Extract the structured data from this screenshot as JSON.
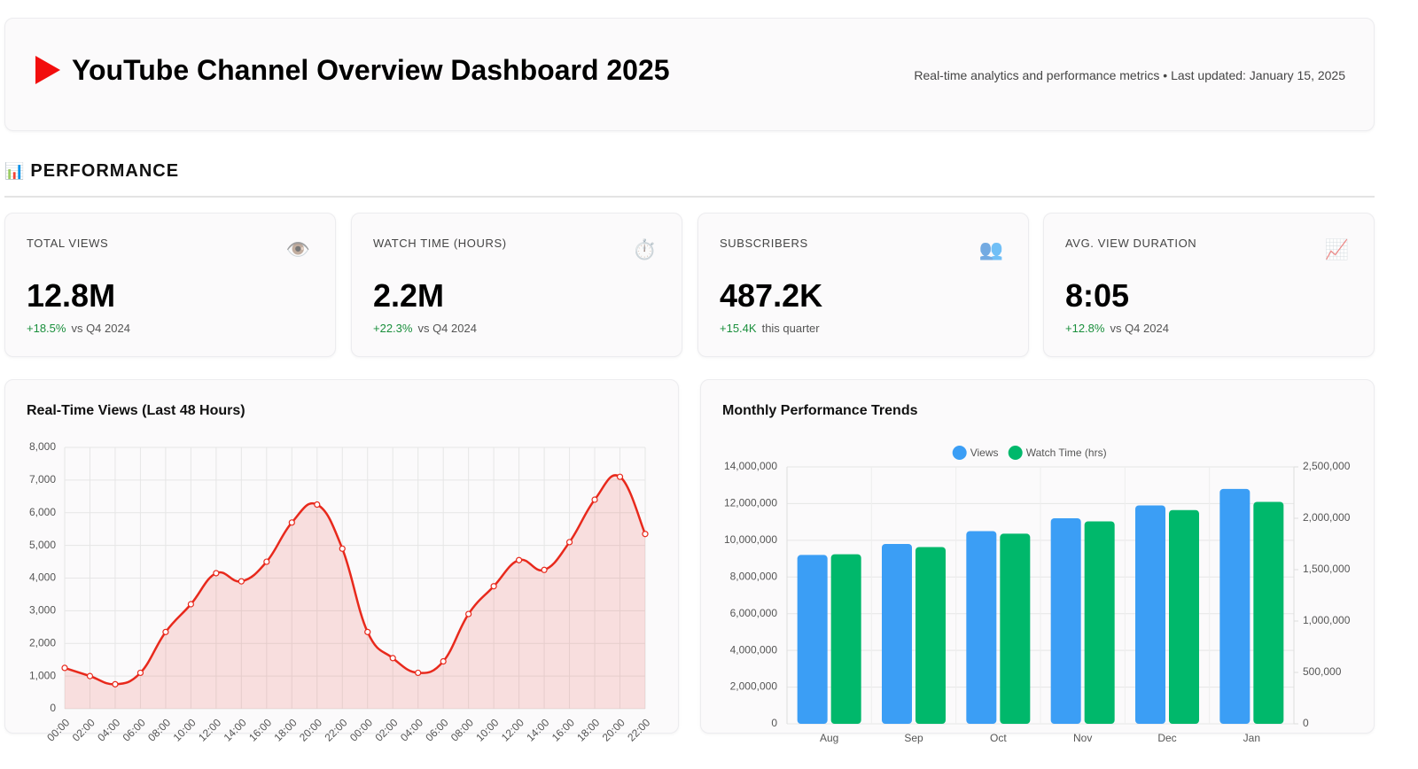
{
  "header": {
    "title": "YouTube Channel Overview Dashboard 2025",
    "subtitle": "Real-time analytics and performance metrics • Last updated: January 15, 2025"
  },
  "section": {
    "title": "PERFORMANCE"
  },
  "kpis": [
    {
      "label": "TOTAL VIEWS",
      "value": "12.8M",
      "change": "+18.5%",
      "note": "vs Q4 2024"
    },
    {
      "label": "WATCH TIME (HOURS)",
      "value": "2.2M",
      "change": "+22.3%",
      "note": "vs Q4 2024"
    },
    {
      "label": "SUBSCRIBERS",
      "value": "487.2K",
      "change": "+15.4K",
      "note": "this quarter"
    },
    {
      "label": "AVG. VIEW DURATION",
      "value": "8:05",
      "change": "+12.8%",
      "note": "vs Q4 2024"
    }
  ],
  "chart_data": [
    {
      "type": "line",
      "title": "Real-Time Views (Last 48 Hours)",
      "categories": [
        "00:00",
        "02:00",
        "04:00",
        "06:00",
        "08:00",
        "10:00",
        "12:00",
        "14:00",
        "16:00",
        "18:00",
        "20:00",
        "22:00",
        "00:00",
        "02:00",
        "04:00",
        "06:00",
        "08:00",
        "10:00",
        "12:00",
        "14:00",
        "16:00",
        "18:00",
        "20:00",
        "22:00"
      ],
      "values": [
        1250,
        1000,
        750,
        1100,
        2350,
        3200,
        4150,
        3900,
        4500,
        5700,
        6250,
        4900,
        2350,
        1550,
        1100,
        1450,
        2900,
        3750,
        4550,
        4250,
        5100,
        6400,
        7100,
        5350
      ],
      "color": "#e8291c",
      "ylim": [
        0,
        8000
      ],
      "yticks": [
        0,
        {
          "value": 1000,
          "label": "1,000"
        },
        {
          "value": 2000,
          "label": "2,000"
        },
        {
          "value": 3000,
          "label": "3,000"
        },
        {
          "value": 4000,
          "label": "4,000"
        },
        {
          "value": 5000,
          "label": "5,000"
        },
        {
          "value": 6000,
          "label": "6,000"
        },
        {
          "value": 7000,
          "label": "7,000"
        },
        {
          "value": 8000,
          "label": "8,000"
        }
      ],
      "grid": true
    },
    {
      "type": "bar",
      "title": "Monthly Performance Trends",
      "categories": [
        "Aug",
        "Sep",
        "Oct",
        "Nov",
        "Dec",
        "Jan"
      ],
      "series": [
        {
          "name": "Views",
          "color": "#3b9ef5",
          "values": [
            9200000,
            9800000,
            10500000,
            11200000,
            11900000,
            12800000
          ]
        },
        {
          "name": "Watch Time (hrs)",
          "color": "#00b86b",
          "axis": "y2",
          "values": [
            1650000,
            1720000,
            1850000,
            1970000,
            2080000,
            2160000
          ]
        }
      ],
      "ylim": [
        0,
        14000000
      ],
      "yticks": [
        0,
        {
          "value": 2000000,
          "label": "2,000,000"
        },
        {
          "value": 4000000,
          "label": "4,000,000"
        },
        {
          "value": 6000000,
          "label": "6,000,000"
        },
        {
          "value": 8000000,
          "label": "8,000,000"
        },
        {
          "value": 10000000,
          "label": "10,000,000"
        },
        {
          "value": 12000000,
          "label": "12,000,000"
        },
        {
          "value": 14000000,
          "label": "14,000,000"
        }
      ],
      "y2lim": [
        0,
        2500000
      ],
      "y2ticks": [
        0,
        {
          "value": 500000,
          "label": "500,000"
        },
        {
          "value": 1000000,
          "label": "1,000,000"
        },
        {
          "value": 1500000,
          "label": "1,500,000"
        },
        {
          "value": 2000000,
          "label": "2,000,000"
        },
        {
          "value": 2500000,
          "label": "2,500,000"
        }
      ],
      "grid": true,
      "legend": "top"
    }
  ]
}
